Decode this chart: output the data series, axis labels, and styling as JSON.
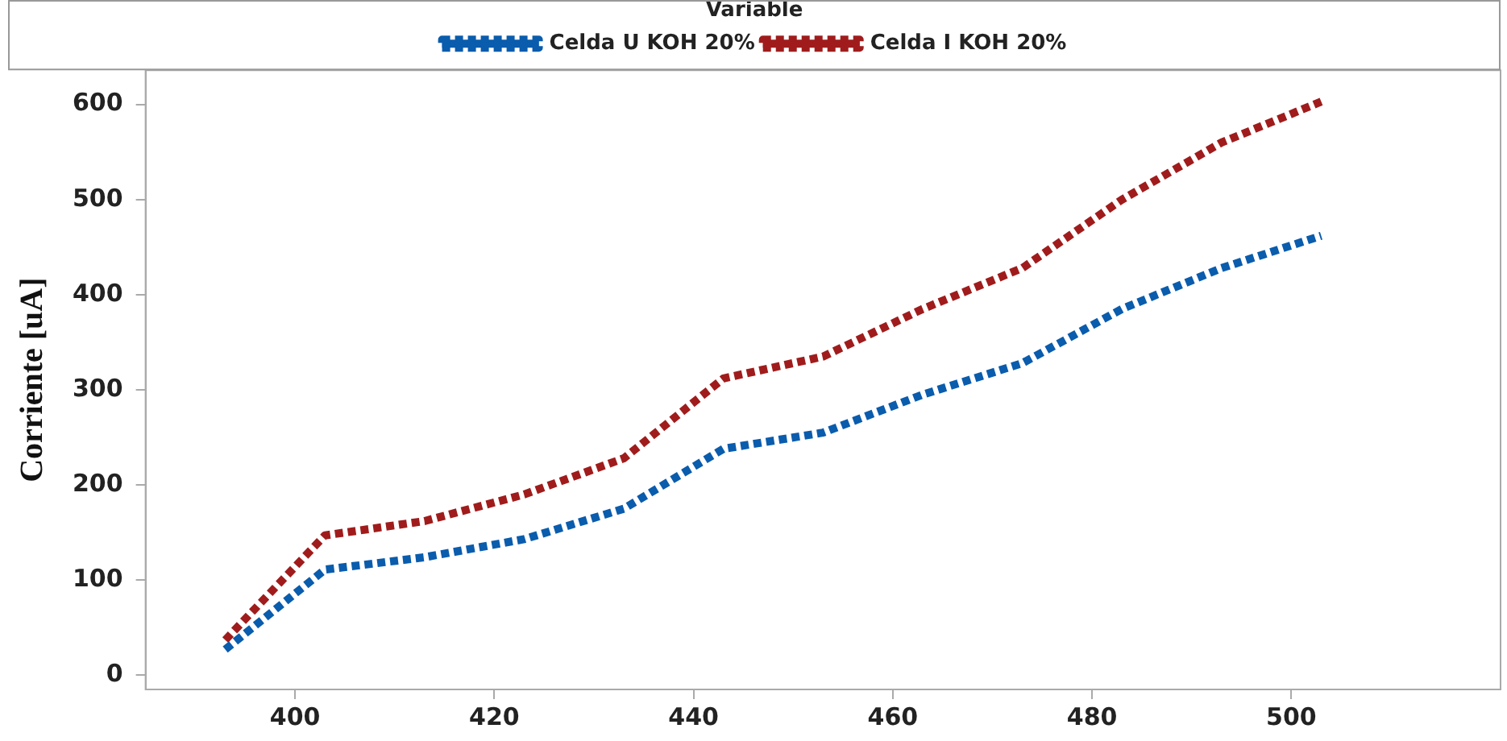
{
  "chart_data": {
    "type": "line",
    "ylabel": "Corriente [uA]",
    "legend_title": "Variable",
    "legend": "top",
    "line_style": "dotted",
    "marker": "none",
    "grid": false,
    "x": [
      393,
      403,
      413,
      423,
      433,
      443,
      453,
      463,
      473,
      483,
      493,
      503
    ],
    "xlim": [
      385,
      521
    ],
    "xticks": [
      400,
      420,
      440,
      460,
      480,
      500
    ],
    "ylim": [
      -15,
      636
    ],
    "yticks": [
      0,
      100,
      200,
      300,
      400,
      500,
      600
    ],
    "series": [
      {
        "name": "Celda U KOH 20%",
        "color": "#0a5cad",
        "values": [
          27,
          111,
          124,
          143,
          175,
          238,
          255,
          295,
          328,
          385,
          428,
          462
        ]
      },
      {
        "name": "Celda I KOH 20%",
        "color": "#a01c1c",
        "values": [
          37,
          147,
          162,
          190,
          228,
          312,
          335,
          385,
          428,
          500,
          560,
          603
        ]
      }
    ]
  }
}
